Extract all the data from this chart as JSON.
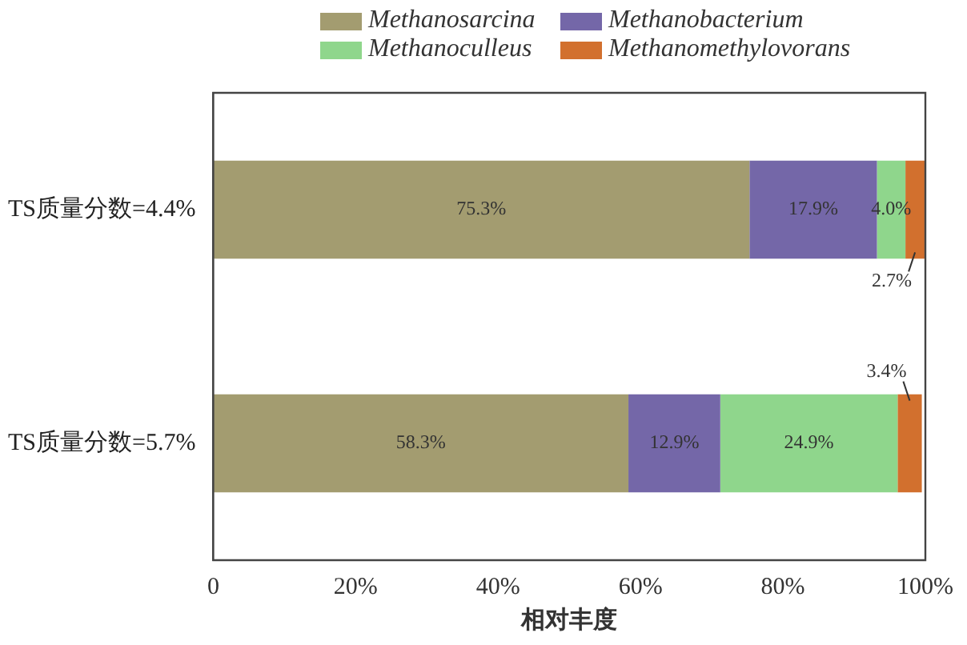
{
  "chart_data": {
    "type": "bar",
    "orientation": "horizontal",
    "stacked": true,
    "xlabel": "相对丰度",
    "categories": [
      "TS质量分数=4.4%",
      "TS质量分数=5.7%"
    ],
    "series": [
      {
        "name": "Methanosarcina",
        "color": "#a39c70",
        "values": [
          75.3,
          58.3
        ],
        "value_labels": [
          "75.3%",
          "58.3%"
        ]
      },
      {
        "name": "Methanobacterium",
        "color": "#7467a8",
        "values": [
          17.9,
          12.9
        ],
        "value_labels": [
          "17.9%",
          "12.9%"
        ]
      },
      {
        "name": "Methanoculleus",
        "color": "#8fd68c",
        "values": [
          4.0,
          24.9
        ],
        "value_labels": [
          "4.0%",
          "24.9%"
        ]
      },
      {
        "name": "Methanomethylovorans",
        "color": "#d2702e",
        "values": [
          2.7,
          3.4
        ],
        "value_labels": [
          "2.7%",
          "3.4%"
        ]
      }
    ],
    "xlim": [
      0,
      100
    ],
    "xticks": [
      0,
      {
        "value": 20,
        "label": "20%"
      },
      {
        "value": 40,
        "label": "40%"
      },
      {
        "value": 60,
        "label": "60%"
      },
      {
        "value": 80,
        "label": "80%"
      },
      {
        "value": 100,
        "label": "100%"
      }
    ],
    "grid": false,
    "legend": "top"
  }
}
